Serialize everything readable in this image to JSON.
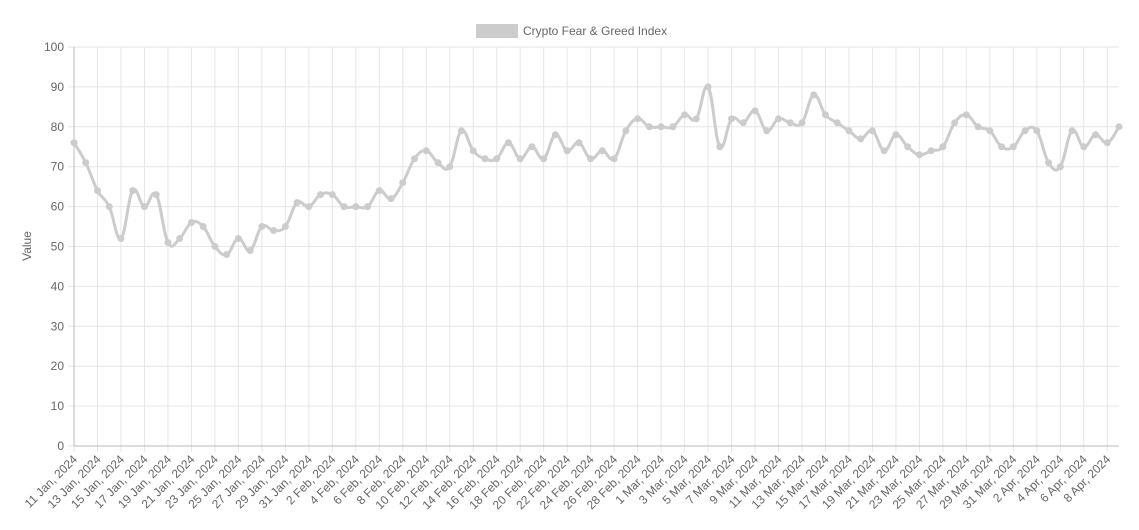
{
  "chart_data": {
    "type": "line",
    "title": "",
    "xlabel": "",
    "ylabel": "Value",
    "ylim": [
      0,
      100
    ],
    "y_ticks": [
      0,
      10,
      20,
      30,
      40,
      50,
      60,
      70,
      80,
      90,
      100
    ],
    "grid": true,
    "legend_position": "top-center",
    "x": [
      "11 Jan, 2024",
      "12 Jan, 2024",
      "13 Jan, 2024",
      "14 Jan, 2024",
      "15 Jan, 2024",
      "16 Jan, 2024",
      "17 Jan, 2024",
      "18 Jan, 2024",
      "19 Jan, 2024",
      "20 Jan, 2024",
      "21 Jan, 2024",
      "22 Jan, 2024",
      "23 Jan, 2024",
      "24 Jan, 2024",
      "25 Jan, 2024",
      "26 Jan, 2024",
      "27 Jan, 2024",
      "28 Jan, 2024",
      "29 Jan, 2024",
      "30 Jan, 2024",
      "31 Jan, 2024",
      "1 Feb, 2024",
      "2 Feb, 2024",
      "3 Feb, 2024",
      "4 Feb, 2024",
      "5 Feb, 2024",
      "6 Feb, 2024",
      "7 Feb, 2024",
      "8 Feb, 2024",
      "9 Feb, 2024",
      "10 Feb, 2024",
      "11 Feb, 2024",
      "12 Feb, 2024",
      "13 Feb, 2024",
      "14 Feb, 2024",
      "15 Feb, 2024",
      "16 Feb, 2024",
      "17 Feb, 2024",
      "18 Feb, 2024",
      "19 Feb, 2024",
      "20 Feb, 2024",
      "21 Feb, 2024",
      "22 Feb, 2024",
      "23 Feb, 2024",
      "24 Feb, 2024",
      "25 Feb, 2024",
      "26 Feb, 2024",
      "27 Feb, 2024",
      "28 Feb, 2024",
      "29 Feb, 2024",
      "1 Mar, 2024",
      "2 Mar, 2024",
      "3 Mar, 2024",
      "4 Mar, 2024",
      "5 Mar, 2024",
      "6 Mar, 2024",
      "7 Mar, 2024",
      "8 Mar, 2024",
      "9 Mar, 2024",
      "10 Mar, 2024",
      "11 Mar, 2024",
      "12 Mar, 2024",
      "13 Mar, 2024",
      "14 Mar, 2024",
      "15 Mar, 2024",
      "16 Mar, 2024",
      "17 Mar, 2024",
      "18 Mar, 2024",
      "19 Mar, 2024",
      "20 Mar, 2024",
      "21 Mar, 2024",
      "22 Mar, 2024",
      "23 Mar, 2024",
      "24 Mar, 2024",
      "25 Mar, 2024",
      "26 Mar, 2024",
      "27 Mar, 2024",
      "28 Mar, 2024",
      "29 Mar, 2024",
      "30 Mar, 2024",
      "31 Mar, 2024",
      "1 Apr, 2024",
      "2 Apr, 2024",
      "3 Apr, 2024",
      "4 Apr, 2024",
      "5 Apr, 2024",
      "6 Apr, 2024",
      "7 Apr, 2024",
      "8 Apr, 2024",
      "9 Apr, 2024"
    ],
    "x_tick_labels": [
      "11 Jan, 2024",
      "13 Jan, 2024",
      "15 Jan, 2024",
      "17 Jan, 2024",
      "19 Jan, 2024",
      "21 Jan, 2024",
      "23 Jan, 2024",
      "25 Jan, 2024",
      "27 Jan, 2024",
      "29 Jan, 2024",
      "31 Jan, 2024",
      "2 Feb, 2024",
      "4 Feb, 2024",
      "6 Feb, 2024",
      "8 Feb, 2024",
      "10 Feb, 2024",
      "12 Feb, 2024",
      "14 Feb, 2024",
      "16 Feb, 2024",
      "18 Feb, 2024",
      "20 Feb, 2024",
      "22 Feb, 2024",
      "24 Feb, 2024",
      "26 Feb, 2024",
      "28 Feb, 2024",
      "1 Mar, 2024",
      "3 Mar, 2024",
      "5 Mar, 2024",
      "7 Mar, 2024",
      "9 Mar, 2024",
      "11 Mar, 2024",
      "13 Mar, 2024",
      "15 Mar, 2024",
      "17 Mar, 2024",
      "19 Mar, 2024",
      "21 Mar, 2024",
      "23 Mar, 2024",
      "25 Mar, 2024",
      "27 Mar, 2024",
      "29 Mar, 2024",
      "31 Mar, 2024",
      "2 Apr, 2024",
      "4 Apr, 2024",
      "6 Apr, 2024",
      "8 Apr, 2024"
    ],
    "series": [
      {
        "name": "Crypto Fear & Greed Index",
        "color": "#cccccc",
        "values": [
          76,
          71,
          64,
          60,
          52,
          64,
          60,
          63,
          51,
          52,
          56,
          55,
          50,
          48,
          52,
          49,
          55,
          54,
          55,
          61,
          60,
          63,
          63,
          60,
          60,
          60,
          64,
          62,
          66,
          72,
          74,
          71,
          70,
          79,
          74,
          72,
          72,
          76,
          72,
          75,
          72,
          78,
          74,
          76,
          72,
          74,
          72,
          79,
          82,
          80,
          80,
          80,
          83,
          82,
          90,
          75,
          82,
          81,
          84,
          79,
          82,
          81,
          81,
          88,
          83,
          81,
          79,
          77,
          79,
          74,
          78,
          75,
          73,
          74,
          75,
          81,
          83,
          80,
          79,
          75,
          75,
          79,
          79,
          71,
          70,
          79,
          75,
          78,
          76,
          80
        ]
      }
    ]
  }
}
